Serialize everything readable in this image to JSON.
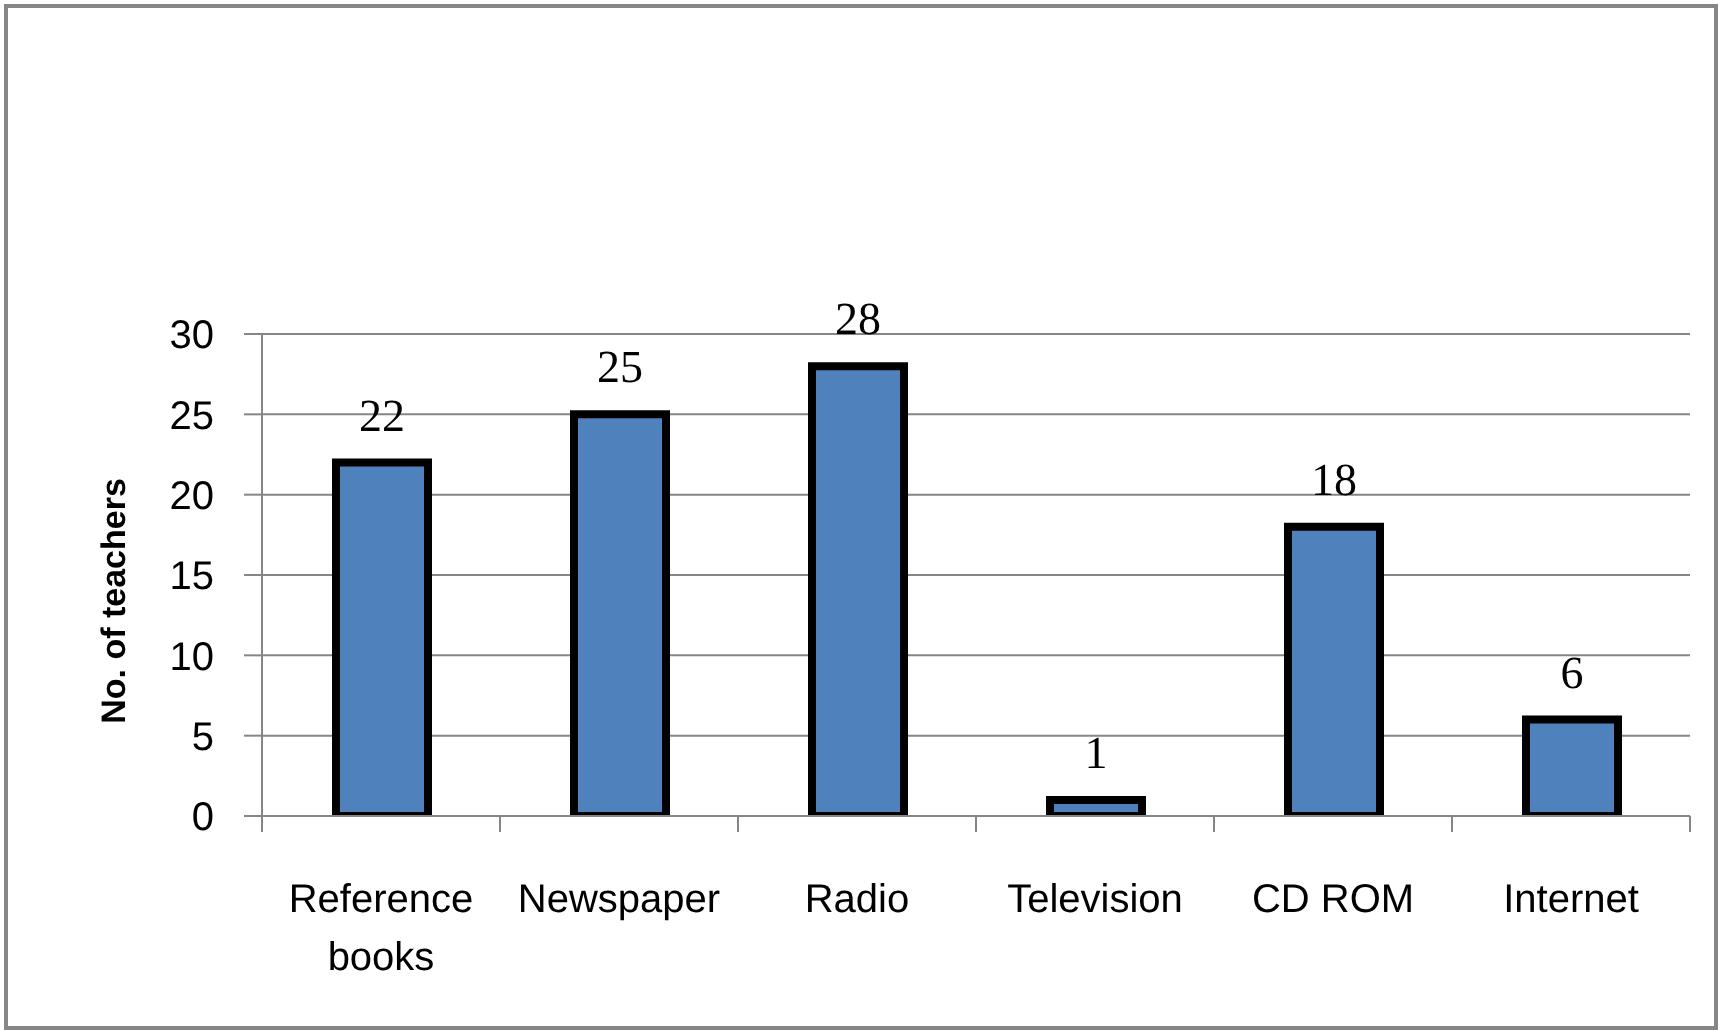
{
  "chart_data": {
    "type": "bar",
    "ylabel": "No. of teachers",
    "categories": [
      "Reference books",
      "Newspaper",
      "Radio",
      "Television",
      "CD ROM",
      "Internet"
    ],
    "values": [
      22,
      25,
      28,
      1,
      18,
      6
    ],
    "color": "#4f81bd",
    "ylim": [
      0,
      30
    ],
    "yticks": [
      0,
      5,
      10,
      15,
      20,
      25,
      30
    ],
    "grid": "y",
    "data_labels": true
  }
}
